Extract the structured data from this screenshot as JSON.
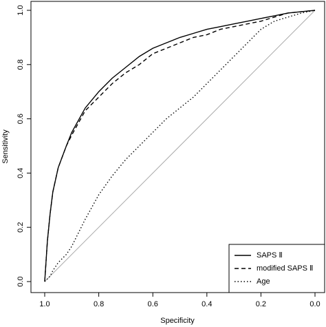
{
  "chart_data": {
    "type": "line",
    "x_label": "Specificity",
    "y_label": "Sensitivity",
    "x": [
      1.0,
      0.99,
      0.98,
      0.97,
      0.95,
      0.92,
      0.9,
      0.85,
      0.8,
      0.75,
      0.7,
      0.65,
      0.6,
      0.55,
      0.5,
      0.45,
      0.4,
      0.35,
      0.3,
      0.25,
      0.2,
      0.15,
      0.1,
      0.05,
      0.0
    ],
    "series": [
      {
        "name": "SAPS Ⅱ",
        "color": "#000000",
        "dash": "solid",
        "values": [
          0,
          0.15,
          0.25,
          0.33,
          0.42,
          0.5,
          0.55,
          0.64,
          0.7,
          0.75,
          0.79,
          0.83,
          0.86,
          0.88,
          0.9,
          0.915,
          0.93,
          0.94,
          0.95,
          0.96,
          0.97,
          0.98,
          0.99,
          0.995,
          1.0
        ]
      },
      {
        "name": "modified SAPS Ⅱ",
        "color": "#000000",
        "dash": "dashed",
        "values": [
          0,
          0.15,
          0.25,
          0.33,
          0.42,
          0.5,
          0.54,
          0.63,
          0.68,
          0.73,
          0.77,
          0.8,
          0.84,
          0.86,
          0.88,
          0.9,
          0.91,
          0.93,
          0.94,
          0.95,
          0.96,
          0.975,
          0.99,
          0.995,
          1.0
        ]
      },
      {
        "name": "Age",
        "color": "#000000",
        "dash": "dotted",
        "values": [
          0,
          0.01,
          0.02,
          0.04,
          0.07,
          0.1,
          0.13,
          0.23,
          0.32,
          0.39,
          0.45,
          0.5,
          0.55,
          0.6,
          0.64,
          0.68,
          0.73,
          0.78,
          0.83,
          0.88,
          0.93,
          0.96,
          0.975,
          0.99,
          1.0
        ]
      }
    ],
    "xlim": [
      1.0,
      0.0
    ],
    "ylim": [
      0.0,
      1.0
    ],
    "xticks": [
      {
        "value": 1,
        "label": "1.0"
      },
      0.8,
      0.6,
      0.4,
      0.2,
      {
        "value": 0,
        "label": "0.0"
      }
    ],
    "yticks": [
      {
        "value": 0,
        "label": "0.0"
      },
      0.2,
      0.4,
      0.6,
      0.8,
      {
        "value": 1,
        "label": "1.0"
      }
    ],
    "reference_line": true,
    "legend": "bottomright"
  }
}
